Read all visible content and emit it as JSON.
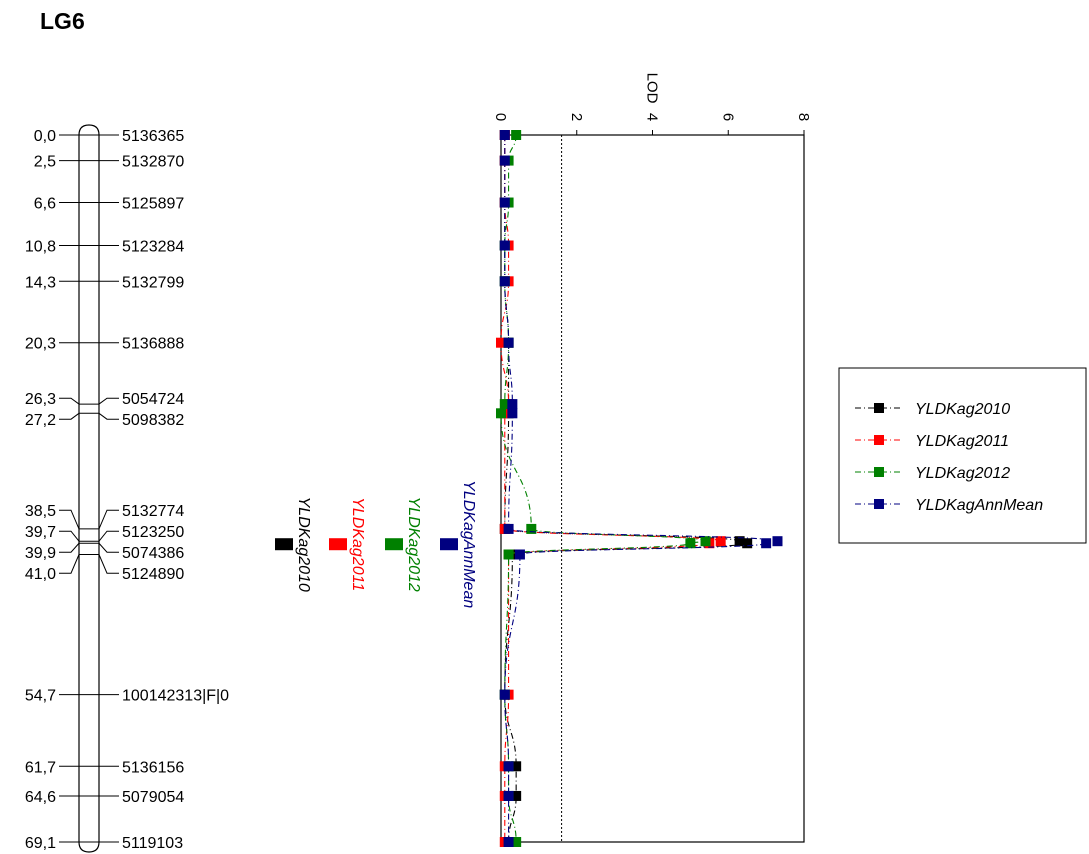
{
  "title": "LG6",
  "chart_data": {
    "type": "line",
    "title": "LG6",
    "orientation": "LOD on horizontal axis (top), map position (cM) down the vertical axis",
    "axis_label": "LOD",
    "lod_range": [
      0,
      8
    ],
    "lod_ticks": [
      "0",
      "2",
      "4",
      "6",
      "8"
    ],
    "threshold": 1.6,
    "markers": [
      {
        "cm": 0.0,
        "cm_label": "0,0",
        "name": "5136365"
      },
      {
        "cm": 2.5,
        "cm_label": "2,5",
        "name": "5132870"
      },
      {
        "cm": 6.6,
        "cm_label": "6,6",
        "name": "5125897"
      },
      {
        "cm": 10.8,
        "cm_label": "10,8",
        "name": "5123284"
      },
      {
        "cm": 14.3,
        "cm_label": "14,3",
        "name": "5132799"
      },
      {
        "cm": 20.3,
        "cm_label": "20,3",
        "name": "5136888"
      },
      {
        "cm": 26.3,
        "cm_label": "26,3",
        "name": "5054724"
      },
      {
        "cm": 27.2,
        "cm_label": "27,2",
        "name": "5098382"
      },
      {
        "cm": 38.5,
        "cm_label": "38,5",
        "name": "5132774"
      },
      {
        "cm": 39.7,
        "cm_label": "39,7",
        "name": "5123250"
      },
      {
        "cm": 39.9,
        "cm_label": "39,9",
        "name": "5074386"
      },
      {
        "cm": 41.0,
        "cm_label": "41,0",
        "name": "5124890"
      },
      {
        "cm": 54.7,
        "cm_label": "54,7",
        "name": "100142313|F|0"
      },
      {
        "cm": 61.7,
        "cm_label": "61,7",
        "name": "5136156"
      },
      {
        "cm": 64.6,
        "cm_label": "64,6",
        "name": "5079054"
      },
      {
        "cm": 69.1,
        "cm_label": "69,1",
        "name": "5119103"
      }
    ],
    "series": [
      {
        "name": "YLDKag2010",
        "color": "#000000",
        "dash": "6,3,1,3",
        "points": [
          [
            0,
            0.1
          ],
          [
            2.5,
            0.1
          ],
          [
            6.6,
            0.1
          ],
          [
            10.8,
            0.1
          ],
          [
            14.3,
            0.1
          ],
          [
            20.3,
            0.2
          ],
          [
            26.3,
            0.2
          ],
          [
            27.2,
            0.2
          ],
          [
            38.5,
            0.1
          ],
          [
            39.7,
            6.3
          ],
          [
            39.9,
            6.5
          ],
          [
            41.0,
            0.3
          ],
          [
            54.7,
            0.1
          ],
          [
            61.7,
            0.4
          ],
          [
            64.6,
            0.4
          ],
          [
            69.1,
            0.2
          ]
        ]
      },
      {
        "name": "YLDKag2011",
        "color": "#ff0000",
        "dash": "6,3,1,3",
        "points": [
          [
            0,
            0.1
          ],
          [
            2.5,
            0.1
          ],
          [
            6.6,
            0.1
          ],
          [
            10.8,
            0.2
          ],
          [
            14.3,
            0.2
          ],
          [
            20.3,
            0.0
          ],
          [
            26.3,
            0.2
          ],
          [
            27.2,
            0.1
          ],
          [
            38.5,
            0.1
          ],
          [
            39.7,
            5.8
          ],
          [
            39.9,
            5.5
          ],
          [
            41.0,
            0.2
          ],
          [
            54.7,
            0.2
          ],
          [
            61.7,
            0.1
          ],
          [
            64.6,
            0.1
          ],
          [
            69.1,
            0.1
          ]
        ]
      },
      {
        "name": "YLDKag2012",
        "color": "#008000",
        "dash": "6,3,1,3",
        "points": [
          [
            0,
            0.4
          ],
          [
            2.5,
            0.2
          ],
          [
            6.6,
            0.2
          ],
          [
            10.8,
            0.1
          ],
          [
            14.3,
            0.1
          ],
          [
            20.3,
            0.2
          ],
          [
            26.3,
            0.1
          ],
          [
            27.2,
            0.0
          ],
          [
            38.5,
            0.8
          ],
          [
            39.7,
            5.4
          ],
          [
            39.9,
            5.0
          ],
          [
            41.0,
            0.2
          ],
          [
            54.7,
            0.1
          ],
          [
            61.7,
            0.2
          ],
          [
            64.6,
            0.2
          ],
          [
            69.1,
            0.4
          ]
        ]
      },
      {
        "name": "YLDKagAnnMean",
        "color": "#000080",
        "dash": "6,3,1,3",
        "points": [
          [
            0,
            0.1
          ],
          [
            2.5,
            0.1
          ],
          [
            6.6,
            0.1
          ],
          [
            10.8,
            0.1
          ],
          [
            14.3,
            0.1
          ],
          [
            20.3,
            0.2
          ],
          [
            26.3,
            0.3
          ],
          [
            27.2,
            0.3
          ],
          [
            38.5,
            0.2
          ],
          [
            39.7,
            7.3
          ],
          [
            39.9,
            7.0
          ],
          [
            41.0,
            0.5
          ],
          [
            54.7,
            0.1
          ],
          [
            61.7,
            0.2
          ],
          [
            64.6,
            0.2
          ],
          [
            69.1,
            0.2
          ]
        ]
      }
    ],
    "qtl_labels": [
      {
        "name": "YLDKag2010",
        "color": "#000000"
      },
      {
        "name": "YLDKag2011",
        "color": "#ff0000"
      },
      {
        "name": "YLDKag2012",
        "color": "#008000"
      },
      {
        "name": "YLDKagAnnMean",
        "color": "#000080"
      }
    ],
    "legend": {
      "position": "right",
      "entries": [
        "YLDKag2010",
        "YLDKag2011",
        "YLDKag2012",
        "YLDKagAnnMean"
      ]
    }
  }
}
